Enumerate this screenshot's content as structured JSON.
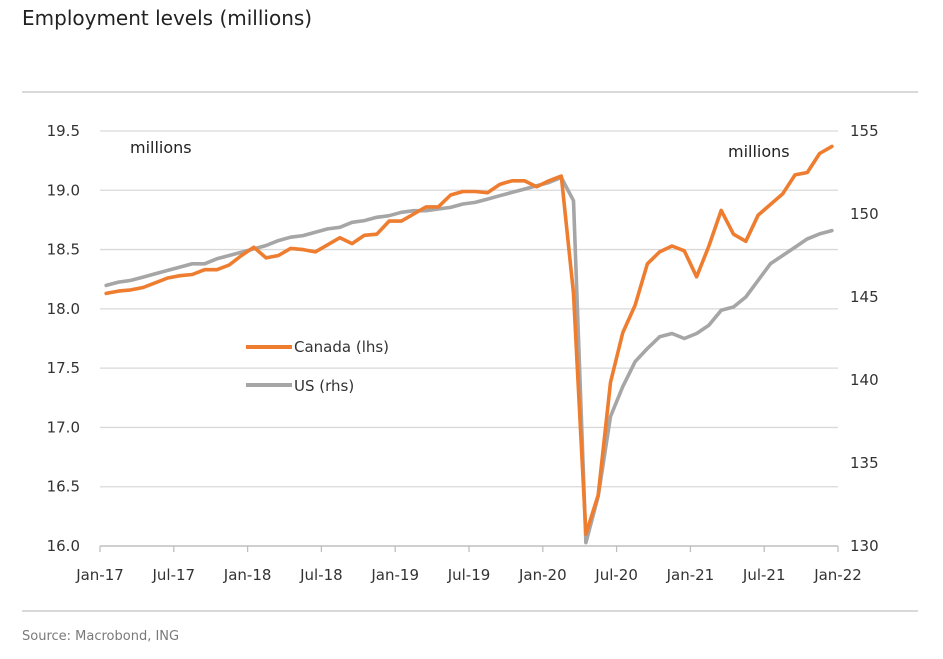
{
  "title": "Employment levels (millions)",
  "source": "Source: Macrobond, ING",
  "chart_data": {
    "type": "line",
    "colors": {
      "canada": "#ee7d30",
      "us": "#a6a6a6"
    },
    "x_tick_labels": [
      "Jan-17",
      "Jul-17",
      "Jan-18",
      "Jul-18",
      "Jan-19",
      "Jul-19",
      "Jan-20",
      "Jul-20",
      "Jan-21",
      "Jul-21",
      "Jan-22"
    ],
    "y_left": {
      "ticks": [
        "16.0",
        "16.5",
        "17.0",
        "17.5",
        "18.0",
        "18.5",
        "19.0",
        "19.5"
      ],
      "range": [
        16.0,
        19.5
      ],
      "unit_note": "millions"
    },
    "y_right": {
      "ticks": [
        "130",
        "135",
        "140",
        "145",
        "150",
        "155"
      ],
      "range": [
        130,
        155
      ],
      "unit_note": "millions"
    },
    "grid": "horizontal",
    "legend_position": "middle-left",
    "x": [
      "2017-01",
      "2017-02",
      "2017-03",
      "2017-04",
      "2017-05",
      "2017-06",
      "2017-07",
      "2017-08",
      "2017-09",
      "2017-10",
      "2017-11",
      "2017-12",
      "2018-01",
      "2018-02",
      "2018-03",
      "2018-04",
      "2018-05",
      "2018-06",
      "2018-07",
      "2018-08",
      "2018-09",
      "2018-10",
      "2018-11",
      "2018-12",
      "2019-01",
      "2019-02",
      "2019-03",
      "2019-04",
      "2019-05",
      "2019-06",
      "2019-07",
      "2019-08",
      "2019-09",
      "2019-10",
      "2019-11",
      "2019-12",
      "2020-01",
      "2020-02",
      "2020-03",
      "2020-04",
      "2020-05",
      "2020-06",
      "2020-07",
      "2020-08",
      "2020-09",
      "2020-10",
      "2020-11",
      "2020-12",
      "2021-01",
      "2021-02",
      "2021-03",
      "2021-04",
      "2021-05",
      "2021-06",
      "2021-07",
      "2021-08",
      "2021-09",
      "2021-10",
      "2021-11",
      "2021-12"
    ],
    "series": [
      {
        "name": "Canada (lhs)",
        "axis": "left",
        "values": [
          18.13,
          18.15,
          18.16,
          18.18,
          18.22,
          18.26,
          18.28,
          18.29,
          18.33,
          18.33,
          18.37,
          18.45,
          18.52,
          18.43,
          18.45,
          18.51,
          18.5,
          18.48,
          18.54,
          18.6,
          18.55,
          18.62,
          18.63,
          18.74,
          18.74,
          18.8,
          18.86,
          18.86,
          18.96,
          18.99,
          18.99,
          18.98,
          19.05,
          19.08,
          19.08,
          19.03,
          19.08,
          19.12,
          18.13,
          16.1,
          16.43,
          17.38,
          17.8,
          18.03,
          18.38,
          18.48,
          18.53,
          18.49,
          18.27,
          18.53,
          18.83,
          18.63,
          18.57,
          18.79,
          18.88,
          18.97,
          19.13,
          19.15,
          19.31,
          19.37
        ]
      },
      {
        "name": "US (rhs)",
        "axis": "right",
        "values": [
          145.7,
          145.9,
          146.0,
          146.2,
          146.4,
          146.6,
          146.8,
          147.0,
          147.0,
          147.3,
          147.5,
          147.7,
          147.9,
          148.1,
          148.4,
          148.6,
          148.7,
          148.9,
          149.1,
          149.2,
          149.5,
          149.6,
          149.8,
          149.9,
          150.1,
          150.2,
          150.2,
          150.3,
          150.4,
          150.6,
          150.7,
          150.9,
          151.1,
          151.3,
          151.5,
          151.7,
          151.9,
          152.2,
          150.8,
          130.2,
          133.0,
          137.8,
          139.6,
          141.1,
          141.9,
          142.6,
          142.8,
          142.5,
          142.8,
          143.3,
          144.2,
          144.4,
          145.0,
          146.0,
          147.0,
          147.5,
          148.0,
          148.5,
          148.8,
          149.0
        ]
      }
    ]
  }
}
